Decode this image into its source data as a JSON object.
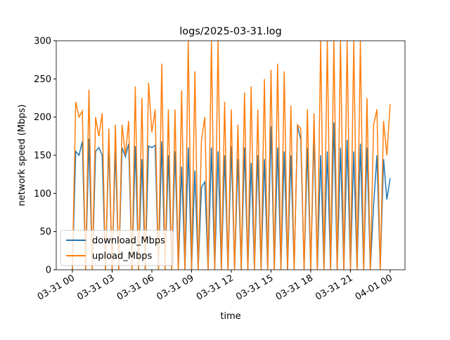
{
  "chart_data": {
    "type": "line",
    "title": "logs/2025-03-31.log",
    "x_label": "time",
    "y_label": "network speed (Mbps)",
    "x": [
      0,
      0.25,
      0.5,
      0.75,
      1,
      1.25,
      1.5,
      1.75,
      2,
      2.25,
      2.5,
      2.75,
      3,
      3.25,
      3.5,
      3.75,
      4,
      4.25,
      4.5,
      4.75,
      5,
      5.25,
      5.5,
      5.75,
      6,
      6.25,
      6.5,
      6.75,
      7,
      7.25,
      7.5,
      7.75,
      8,
      8.25,
      8.5,
      8.75,
      9,
      9.25,
      9.5,
      9.75,
      10,
      10.25,
      10.5,
      10.75,
      11,
      11.25,
      11.5,
      11.75,
      12,
      12.25,
      12.5,
      12.75,
      13,
      13.25,
      13.5,
      13.75,
      14,
      14.25,
      14.5,
      14.75,
      15,
      15.25,
      15.5,
      15.75,
      16,
      16.25,
      16.5,
      16.75,
      17,
      17.25,
      17.5,
      17.75,
      18,
      18.25,
      18.5,
      18.75,
      19,
      19.25,
      19.5,
      19.75,
      20,
      20.25,
      20.5,
      20.75,
      21,
      21.25,
      21.5,
      21.75,
      22,
      22.25,
      22.5,
      22.75,
      23,
      23.25,
      23.5,
      23.75,
      24
    ],
    "series": [
      {
        "name": "download_Mbps",
        "color": "#1f77b4",
        "values": [
          0,
          155,
          150,
          168,
          0,
          172,
          0,
          155,
          160,
          150,
          0,
          165,
          0,
          158,
          0,
          160,
          148,
          165,
          0,
          162,
          0,
          145,
          0,
          162,
          160,
          163,
          0,
          168,
          0,
          150,
          0,
          155,
          0,
          135,
          0,
          160,
          0,
          130,
          0,
          108,
          115,
          0,
          160,
          0,
          155,
          0,
          150,
          0,
          162,
          0,
          145,
          0,
          160,
          0,
          140,
          0,
          150,
          0,
          145,
          0,
          188,
          0,
          160,
          0,
          155,
          0,
          150,
          0,
          189,
          170,
          0,
          160,
          0,
          175,
          0,
          150,
          0,
          155,
          0,
          193,
          0,
          160,
          0,
          170,
          0,
          155,
          0,
          165,
          0,
          160,
          0,
          85,
          150,
          0,
          145,
          92,
          120
        ]
      },
      {
        "name": "upload_Mbps",
        "color": "#ff7f0e",
        "values": [
          0,
          220,
          200,
          208,
          0,
          236,
          0,
          200,
          175,
          205,
          0,
          185,
          0,
          190,
          0,
          190,
          150,
          195,
          0,
          240,
          0,
          225,
          0,
          245,
          180,
          210,
          0,
          270,
          0,
          210,
          0,
          210,
          0,
          235,
          0,
          300,
          0,
          260,
          0,
          170,
          200,
          0,
          300,
          0,
          300,
          0,
          220,
          0,
          210,
          0,
          190,
          0,
          232,
          0,
          240,
          0,
          210,
          0,
          250,
          0,
          262,
          0,
          270,
          0,
          260,
          0,
          215,
          0,
          190,
          185,
          0,
          210,
          0,
          205,
          0,
          300,
          0,
          300,
          0,
          300,
          0,
          300,
          0,
          300,
          0,
          300,
          0,
          300,
          0,
          225,
          0,
          190,
          210,
          0,
          195,
          150,
          217
        ]
      }
    ],
    "xlim": [
      -1.22,
      25.12
    ],
    "ylim": [
      0,
      300
    ],
    "xticks": [
      {
        "value": 0,
        "label": "03-31 00"
      },
      {
        "value": 3,
        "label": "03-31 03"
      },
      {
        "value": 6,
        "label": "03-31 06"
      },
      {
        "value": 9,
        "label": "03-31 09"
      },
      {
        "value": 12,
        "label": "03-31 12"
      },
      {
        "value": 15,
        "label": "03-31 15"
      },
      {
        "value": 18,
        "label": "03-31 18"
      },
      {
        "value": 21,
        "label": "03-31 21"
      },
      {
        "value": 24,
        "label": "04-01 00"
      }
    ],
    "yticks": [
      0,
      50,
      100,
      150,
      200,
      250,
      300
    ],
    "legend": "lower left"
  }
}
